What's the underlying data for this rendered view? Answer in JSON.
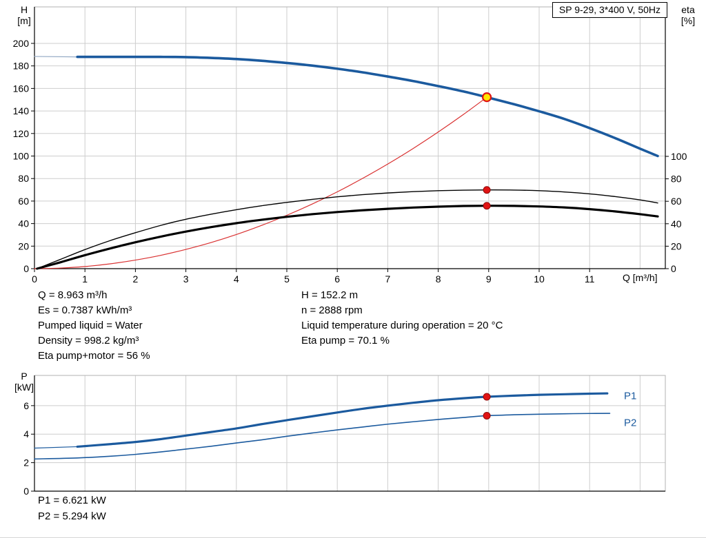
{
  "colors": {
    "curve_blue": "#1b5a9e",
    "system_red": "#d93030",
    "dot_red": "#e01414",
    "dot_red_edge": "#8f0b0b",
    "duty_yellow": "#ffe600",
    "grid": "#cdcdcd",
    "border": "#b2b2b2",
    "extension_gray": "#93a9c4"
  },
  "readouts": {
    "left": [
      "Q = 8.963 m³/h",
      "Es = 0.7387 kWh/m³",
      "Pumped liquid = Water",
      "Density = 998.2 kg/m³",
      "Eta pump+motor = 56 %"
    ],
    "right": [
      "H = 152.2 m",
      "n = 2888 rpm",
      "Liquid temperature during operation = 20 °C",
      "Eta pump = 70.1 %"
    ],
    "power": [
      "P1 = 6.621 kW",
      "P2 = 5.294 kW"
    ]
  },
  "chart_data": [
    {
      "type": "line",
      "title": "SP 9-29, 3*400 V, 50Hz",
      "x_axis": {
        "label": "Q [m³/h]",
        "min": 0,
        "max": 12.5,
        "ticks": [
          0,
          1,
          2,
          3,
          4,
          5,
          6,
          7,
          8,
          9,
          10,
          11
        ],
        "grid": [
          1,
          2,
          3,
          4,
          5,
          6,
          7,
          8,
          9,
          10,
          11,
          12
        ]
      },
      "y_left": {
        "label": "H [m]",
        "label_lines": [
          "H",
          "[m]"
        ],
        "min": 0,
        "max": 232.4,
        "ticks": [
          0,
          20,
          40,
          60,
          80,
          100,
          120,
          140,
          160,
          180,
          200
        ]
      },
      "y_right": {
        "label": "eta [%]",
        "label_lines": [
          "eta",
          "[%]"
        ],
        "min": 0,
        "max": 233.1,
        "ticks": [
          0,
          20,
          40,
          60,
          80,
          100
        ]
      },
      "series": [
        {
          "id": "pump-curve-extension",
          "name": "H curve extrapolated",
          "axis": "y_left",
          "color": "#93a9c4",
          "width": 1.2,
          "points": [
            [
              0,
              188.4
            ],
            [
              0.85,
              188
            ]
          ]
        },
        {
          "id": "system-curve",
          "name": "System curve",
          "axis": "y_left",
          "color": "#d93030",
          "width": 1.2,
          "points": [
            [
              0,
              0
            ],
            [
              0.5,
              0.5
            ],
            [
              1,
              1.9
            ],
            [
              1.5,
              4.3
            ],
            [
              2,
              7.6
            ],
            [
              2.5,
              11.8
            ],
            [
              3,
              17.1
            ],
            [
              3.5,
              23.2
            ],
            [
              4,
              30.3
            ],
            [
              4.5,
              38.4
            ],
            [
              5,
              47.4
            ],
            [
              5.5,
              57.3
            ],
            [
              6,
              68.2
            ],
            [
              6.5,
              80.1
            ],
            [
              7,
              92.9
            ],
            [
              7.5,
              106.6
            ],
            [
              8,
              121.3
            ],
            [
              8.5,
              136.9
            ],
            [
              8.963,
              152.2
            ]
          ]
        },
        {
          "id": "eta-pump-curve",
          "name": "Eta pump",
          "axis": "y_right",
          "color": "#000000",
          "width": 1.4,
          "points": [
            [
              0.05,
              0
            ],
            [
              0.5,
              8
            ],
            [
              1,
              17
            ],
            [
              1.5,
              25
            ],
            [
              2,
              32
            ],
            [
              2.5,
              38.5
            ],
            [
              3,
              44
            ],
            [
              3.5,
              48.5
            ],
            [
              4,
              52.5
            ],
            [
              4.5,
              56
            ],
            [
              5,
              59
            ],
            [
              5.5,
              61.7
            ],
            [
              6,
              64
            ],
            [
              6.5,
              65.9
            ],
            [
              7,
              67.4
            ],
            [
              7.5,
              68.6
            ],
            [
              8,
              69.4
            ],
            [
              8.5,
              69.9
            ],
            [
              9,
              70.1
            ],
            [
              9.5,
              70
            ],
            [
              10,
              69.4
            ],
            [
              10.5,
              68.3
            ],
            [
              11,
              66.6
            ],
            [
              11.5,
              64.2
            ],
            [
              12,
              61.2
            ],
            [
              12.35,
              58.5
            ]
          ]
        },
        {
          "id": "eta-pump-motor-curve",
          "name": "Eta pump+motor",
          "axis": "y_right",
          "color": "#000000",
          "width": 3.2,
          "points": [
            [
              0.05,
              0
            ],
            [
              0.5,
              5.5
            ],
            [
              1,
              12
            ],
            [
              1.5,
              18
            ],
            [
              2,
              23.5
            ],
            [
              2.5,
              28.5
            ],
            [
              3,
              33
            ],
            [
              3.5,
              37
            ],
            [
              4,
              40.5
            ],
            [
              4.5,
              43.5
            ],
            [
              5,
              46.2
            ],
            [
              5.5,
              48.5
            ],
            [
              6,
              50.4
            ],
            [
              6.5,
              52
            ],
            [
              7,
              53.3
            ],
            [
              7.5,
              54.4
            ],
            [
              8,
              55.2
            ],
            [
              8.5,
              55.8
            ],
            [
              9,
              56
            ],
            [
              9.5,
              55.9
            ],
            [
              10,
              55.4
            ],
            [
              10.5,
              54.5
            ],
            [
              11,
              53
            ],
            [
              11.5,
              51
            ],
            [
              12,
              48.5
            ],
            [
              12.35,
              46.5
            ]
          ]
        },
        {
          "id": "pump-curve",
          "name": "H curve",
          "axis": "y_left",
          "color": "#1b5a9e",
          "width": 3.6,
          "points": [
            [
              0.85,
              188
            ],
            [
              2,
              188
            ],
            [
              2.5,
              188
            ],
            [
              3,
              187.8
            ],
            [
              3.5,
              187.1
            ],
            [
              4,
              186.1
            ],
            [
              4.5,
              184.6
            ],
            [
              5,
              182.6
            ],
            [
              5.5,
              180.3
            ],
            [
              6,
              177.5
            ],
            [
              6.5,
              174.3
            ],
            [
              7,
              170.6
            ],
            [
              7.5,
              166.6
            ],
            [
              8,
              162.1
            ],
            [
              8.5,
              157.3
            ],
            [
              8.963,
              152.2
            ],
            [
              9.5,
              146
            ],
            [
              10,
              139.7
            ],
            [
              10.5,
              132.9
            ],
            [
              11,
              124.8
            ],
            [
              11.5,
              116
            ],
            [
              12,
              106.5
            ],
            [
              12.35,
              100
            ]
          ]
        }
      ],
      "markers": [
        {
          "id": "eta-pump-point",
          "x": 8.963,
          "y": 70.1,
          "axis": "y_right",
          "r": 5,
          "fill": "#e01414",
          "stroke": "#8f0b0b",
          "stroke_width": 1
        },
        {
          "id": "eta-pump-motor-point",
          "x": 8.963,
          "y": 56,
          "axis": "y_right",
          "r": 5,
          "fill": "#e01414",
          "stroke": "#8f0b0b",
          "stroke_width": 1
        },
        {
          "id": "duty-point",
          "x": 8.963,
          "y": 152.2,
          "axis": "y_left",
          "r": 6,
          "fill": "#ffe600",
          "stroke": "#e01414",
          "stroke_width": 2.2
        }
      ]
    },
    {
      "type": "line",
      "title": "",
      "x_axis": {
        "label": "",
        "min": 0,
        "max": 12.5,
        "ticks": [],
        "grid": [
          1,
          2,
          3,
          4,
          5,
          6,
          7,
          8,
          9,
          10,
          11,
          12
        ]
      },
      "y_left": {
        "label": "P [kW]",
        "label_lines": [
          "P",
          "[kW]"
        ],
        "min": 0,
        "max": 8.12,
        "ticks": [
          0,
          2,
          4,
          6
        ]
      },
      "series": [
        {
          "id": "p1-curve-extension",
          "name": "P1 extrapolated",
          "axis": "y_left",
          "color": "#1b5a9e",
          "width": 1.2,
          "points": [
            [
              0,
              3.02
            ],
            [
              0.85,
              3.12
            ]
          ]
        },
        {
          "id": "p2-curve",
          "name": "P2",
          "axis": "y_left",
          "color": "#1b5a9e",
          "width": 1.6,
          "points": [
            [
              0,
              2.26
            ],
            [
              0.85,
              2.33
            ],
            [
              1.5,
              2.45
            ],
            [
              2,
              2.58
            ],
            [
              2.5,
              2.75
            ],
            [
              3,
              2.95
            ],
            [
              3.5,
              3.15
            ],
            [
              4,
              3.38
            ],
            [
              4.5,
              3.6
            ],
            [
              5,
              3.85
            ],
            [
              5.5,
              4.08
            ],
            [
              6,
              4.3
            ],
            [
              6.5,
              4.5
            ],
            [
              7,
              4.7
            ],
            [
              7.5,
              4.87
            ],
            [
              8,
              5.03
            ],
            [
              8.5,
              5.17
            ],
            [
              8.963,
              5.294
            ],
            [
              9.5,
              5.36
            ],
            [
              10,
              5.4
            ],
            [
              10.5,
              5.43
            ],
            [
              11,
              5.45
            ],
            [
              11.4,
              5.46
            ]
          ]
        },
        {
          "id": "p1-curve",
          "name": "P1",
          "axis": "y_left",
          "color": "#1b5a9e",
          "width": 3.2,
          "points": [
            [
              0.85,
              3.12
            ],
            [
              1.5,
              3.3
            ],
            [
              2,
              3.45
            ],
            [
              2.5,
              3.65
            ],
            [
              3,
              3.9
            ],
            [
              3.5,
              4.15
            ],
            [
              4,
              4.4
            ],
            [
              4.5,
              4.7
            ],
            [
              5,
              4.98
            ],
            [
              5.5,
              5.25
            ],
            [
              6,
              5.52
            ],
            [
              6.5,
              5.78
            ],
            [
              7,
              6.0
            ],
            [
              7.5,
              6.2
            ],
            [
              8,
              6.38
            ],
            [
              8.5,
              6.52
            ],
            [
              8.963,
              6.621
            ],
            [
              9.5,
              6.7
            ],
            [
              10,
              6.76
            ],
            [
              10.5,
              6.8
            ],
            [
              11,
              6.84
            ],
            [
              11.35,
              6.86
            ]
          ]
        }
      ],
      "markers": [
        {
          "id": "p1-point",
          "x": 8.963,
          "y": 6.621,
          "axis": "y_left",
          "r": 5,
          "fill": "#e01414",
          "stroke": "#8f0b0b",
          "stroke_width": 1
        },
        {
          "id": "p2-point",
          "x": 8.963,
          "y": 5.294,
          "axis": "y_left",
          "r": 5,
          "fill": "#e01414",
          "stroke": "#8f0b0b",
          "stroke_width": 1
        }
      ],
      "labels": [
        {
          "id": "p1-label",
          "text": "P1",
          "x": 11.68,
          "y": 6.7,
          "axis": "y_left",
          "color": "#1b5a9e",
          "size": 15
        },
        {
          "id": "p2-label",
          "text": "P2",
          "x": 11.68,
          "y": 4.8,
          "axis": "y_left",
          "color": "#1b5a9e",
          "size": 15
        }
      ]
    }
  ]
}
